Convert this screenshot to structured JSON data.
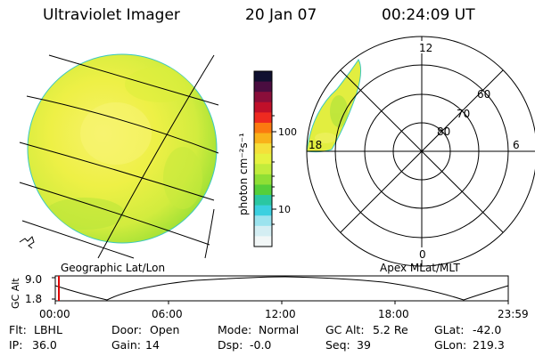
{
  "header": {
    "instrument": "Ultraviolet Imager",
    "date": "20 Jan 07",
    "time": "00:24:09 UT"
  },
  "colorbar": {
    "label": "photon cm⁻²s⁻¹",
    "tick_labels": [
      "100",
      "10"
    ],
    "colors": [
      "#101030",
      "#4a0d40",
      "#8a0e3a",
      "#c0102a",
      "#ee2a20",
      "#fb7a10",
      "#f9b21a",
      "#f5e03a",
      "#e6f240",
      "#c2ec3c",
      "#8fdf35",
      "#55cf3a",
      "#2ac7a2",
      "#3bd0e0",
      "#9be3ee",
      "#d4eef3",
      "#f2f7f7"
    ]
  },
  "left_panel": {
    "label": "Geographic Lat/Lon"
  },
  "right_panel": {
    "label": "Apex  MLat/MLT",
    "mlt_labels": [
      "12",
      "18",
      "6",
      "0"
    ],
    "lat_labels": [
      "60",
      "70",
      "80"
    ]
  },
  "orbit_plot": {
    "ylabel": "GC Alt",
    "y_ticks": [
      "9.0",
      "1.8"
    ],
    "x_ticks": [
      "00:00",
      "06:00",
      "12:00",
      "18:00",
      "23:59"
    ],
    "current_time": "00:24"
  },
  "status": {
    "flt_label": "Flt:",
    "flt_value": "LBHL",
    "ip_label": "IP:",
    "ip_value": "36.0",
    "door_label": "Door:",
    "door_value": "Open",
    "gain_label": "Gain:",
    "gain_value": "14",
    "mode_label": "Mode:",
    "mode_value": "Normal",
    "dsp_label": "Dsp:",
    "dsp_value": "-0.0",
    "gcalt_label": "GC Alt:",
    "gcalt_value": "5.2 Re",
    "seq_label": "Seq:",
    "seq_value": "39",
    "glat_label": "GLat:",
    "glat_value": "-42.0",
    "glon_label": "GLon:",
    "glon_value": "219.3"
  }
}
